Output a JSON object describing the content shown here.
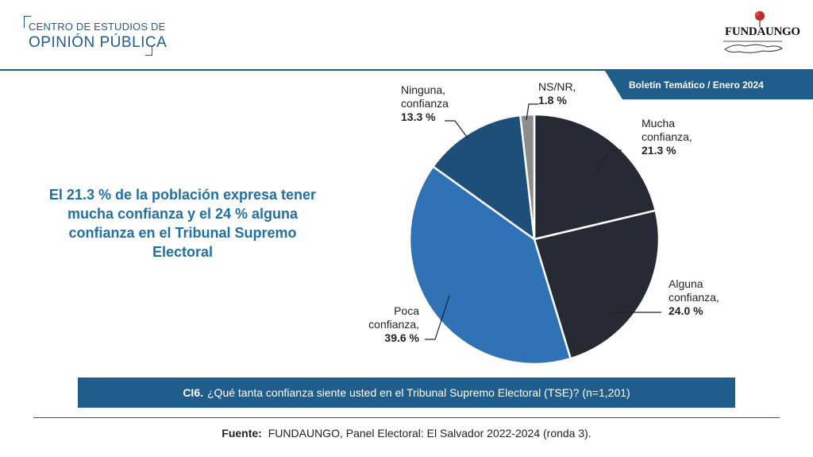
{
  "header": {
    "logo_line1": "CENTRO DE ESTUDIOS DE",
    "logo_line2": "OPINIÓN PÚBLICA",
    "brand_text": "FUNDAUNGO",
    "bulletin": "Boletín Temático / Enero 2024"
  },
  "headline": "El 21.3 % de la población expresa tener mucha confianza y el 24 % alguna confianza en el Tribunal Supremo Electoral",
  "question": {
    "code": "CI6.",
    "text": "¿Qué tanta confianza siente usted en el Tribunal Supremo Electoral (TSE)? (n=1,201)"
  },
  "source": {
    "label": "Fuente:",
    "text": "FUNDAUNGO, Panel Electoral: El Salvador 2022-2024 (ronda 3)."
  },
  "chart_data": {
    "type": "pie",
    "start": "12 o'clock",
    "direction": "clockwise",
    "slices": [
      {
        "label_lines": [
          "Mucha",
          "confianza,"
        ],
        "value": 21.3,
        "value_text": "21.3 %",
        "color": "#252a35"
      },
      {
        "label_lines": [
          "Alguna",
          "confianza,"
        ],
        "value": 24.0,
        "value_text": "24.0 %",
        "color": "#252a35"
      },
      {
        "label_lines": [
          "Poca",
          "confianza,"
        ],
        "value": 39.6,
        "value_text": "39.6 %",
        "color": "#2f72b5"
      },
      {
        "label_lines": [
          "Ninguna,",
          "confianza"
        ],
        "value": 13.3,
        "value_text": "13.3 %",
        "color": "#1e4f78"
      },
      {
        "label_lines": [
          "NS/NR,"
        ],
        "value": 1.8,
        "value_text": "1.8 %",
        "color": "#8c8c8c"
      }
    ]
  }
}
